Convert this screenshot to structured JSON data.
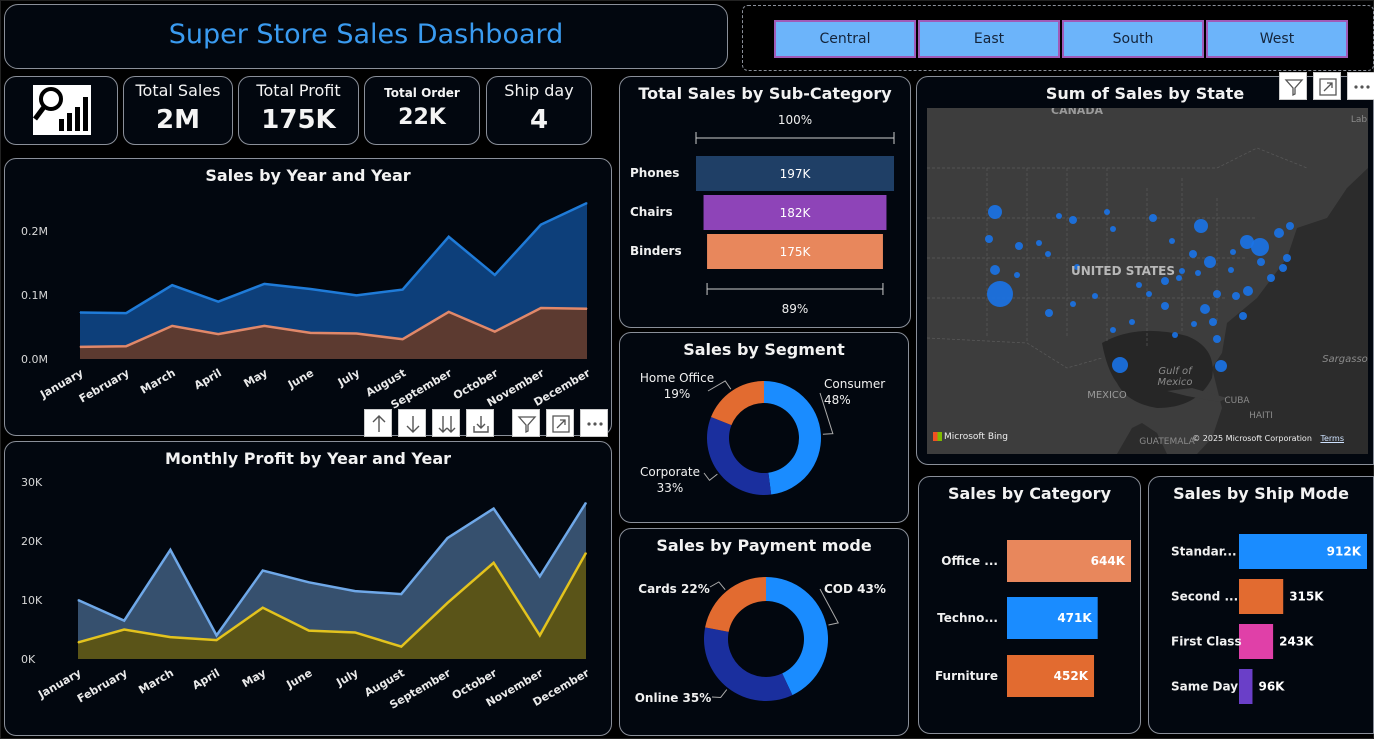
{
  "header": {
    "title": "Super Store Sales Dashboard"
  },
  "slicer": {
    "regions": [
      "Central",
      "East",
      "South",
      "West"
    ]
  },
  "kpis": [
    {
      "label": "Total Sales",
      "value": "2M"
    },
    {
      "label": "Total Profit",
      "value": "175K"
    },
    {
      "label": "Total Order",
      "value": "22K"
    },
    {
      "label": "Ship day",
      "value": "4"
    }
  ],
  "months": [
    "January",
    "February",
    "March",
    "April",
    "May",
    "June",
    "July",
    "August",
    "September",
    "October",
    "November",
    "December"
  ],
  "sales_chart": {
    "title": "Sales by Year and Year",
    "y_ticks": [
      "0.2M",
      "0.1M",
      "0.0M"
    ],
    "chart_data": {
      "type": "area",
      "ylim": [
        0,
        0.245
      ],
      "series": [
        {
          "values": [
            0.073,
            0.072,
            0.116,
            0.09,
            0.118,
            0.11,
            0.1,
            0.109,
            0.192,
            0.132,
            0.211,
            0.245
          ],
          "color": "#1f7bd8"
        },
        {
          "values": [
            0.019,
            0.02,
            0.052,
            0.039,
            0.052,
            0.041,
            0.04,
            0.031,
            0.074,
            0.043,
            0.08,
            0.079
          ],
          "color": "#e0886a"
        }
      ]
    }
  },
  "profit_chart": {
    "title": "Monthly Profit by Year and Year",
    "y_ticks": [
      "30K",
      "20K",
      "10K",
      "0K"
    ],
    "chart_data": {
      "type": "area",
      "ylim": [
        0,
        30
      ],
      "series": [
        {
          "values": [
            10,
            6.5,
            18.5,
            4,
            15,
            13,
            11.5,
            11,
            20.5,
            25.5,
            14,
            26.5
          ],
          "color": "#6fa8e8"
        },
        {
          "values": [
            2.8,
            5,
            3.7,
            3.2,
            8.7,
            4.8,
            4.5,
            2.1,
            9.5,
            16.3,
            4,
            18
          ],
          "color": "#e3c31e"
        }
      ]
    }
  },
  "subcategory": {
    "title": "Total Sales by Sub-Category",
    "top_pct": "100%",
    "bottom_pct": "89%",
    "chart_data": {
      "type": "bar",
      "categories": [
        "Phones",
        "Chairs",
        "Binders"
      ],
      "values": [
        197,
        182,
        175
      ],
      "labels": [
        "197K",
        "182K",
        "175K"
      ],
      "colors": [
        "#1f3f66",
        "#8e44b8",
        "#e8875c"
      ]
    }
  },
  "segment": {
    "title": "Sales by Segment",
    "chart_data": {
      "type": "pie",
      "categories": [
        "Consumer",
        "Corporate",
        "Home Office"
      ],
      "values": [
        48,
        33,
        19
      ],
      "colors": [
        "#1a8cff",
        "#1a2f9e",
        "#e26b30"
      ],
      "labels": [
        "Consumer\n48%",
        "Corporate\n33%",
        "Home Office\n19%"
      ]
    }
  },
  "payment": {
    "title": "Sales by Payment mode",
    "chart_data": {
      "type": "pie",
      "categories": [
        "COD",
        "Online",
        "Cards"
      ],
      "values": [
        43,
        35,
        22
      ],
      "colors": [
        "#1a8cff",
        "#1a2f9e",
        "#e26b30"
      ],
      "labels": [
        "COD 43%",
        "Online 35%",
        "Cards 22%"
      ]
    }
  },
  "map": {
    "title": "Sum of Sales by State",
    "labels": {
      "canada": "CANADA",
      "us": "UNITED STATES",
      "gulf": "Gulf of\nMexico",
      "mexico": "MEXICO",
      "cuba": "CUBA",
      "haiti": "HAITI",
      "guatemala": "GUATEMALA",
      "sargasso": "Sargasso",
      "lab": "Lab"
    },
    "bing": "Microsoft Bing",
    "copyright": "© 2025 Microsoft Corporation",
    "terms": "Terms"
  },
  "category": {
    "title": "Sales by Category",
    "chart_data": {
      "type": "bar",
      "categories": [
        "Office ...",
        "Techno...",
        "Furniture"
      ],
      "values": [
        644,
        471,
        452
      ],
      "labels": [
        "644K",
        "471K",
        "452K"
      ],
      "colors": [
        "#e8875c",
        "#1a8cff",
        "#e26b30"
      ]
    }
  },
  "shipmode": {
    "title": "Sales by Ship Mode",
    "chart_data": {
      "type": "bar",
      "categories": [
        "Standar...",
        "Second ...",
        "First Class",
        "Same Day"
      ],
      "values": [
        912,
        315,
        243,
        96
      ],
      "labels": [
        "912K",
        "315K",
        "243K",
        "96K"
      ],
      "colors": [
        "#1a8cff",
        "#e26b30",
        "#e040a8",
        "#6a3fc8"
      ]
    }
  },
  "icons": {
    "filter": "filter-icon",
    "focus": "focus-mode-icon",
    "more": "more-options-icon"
  }
}
